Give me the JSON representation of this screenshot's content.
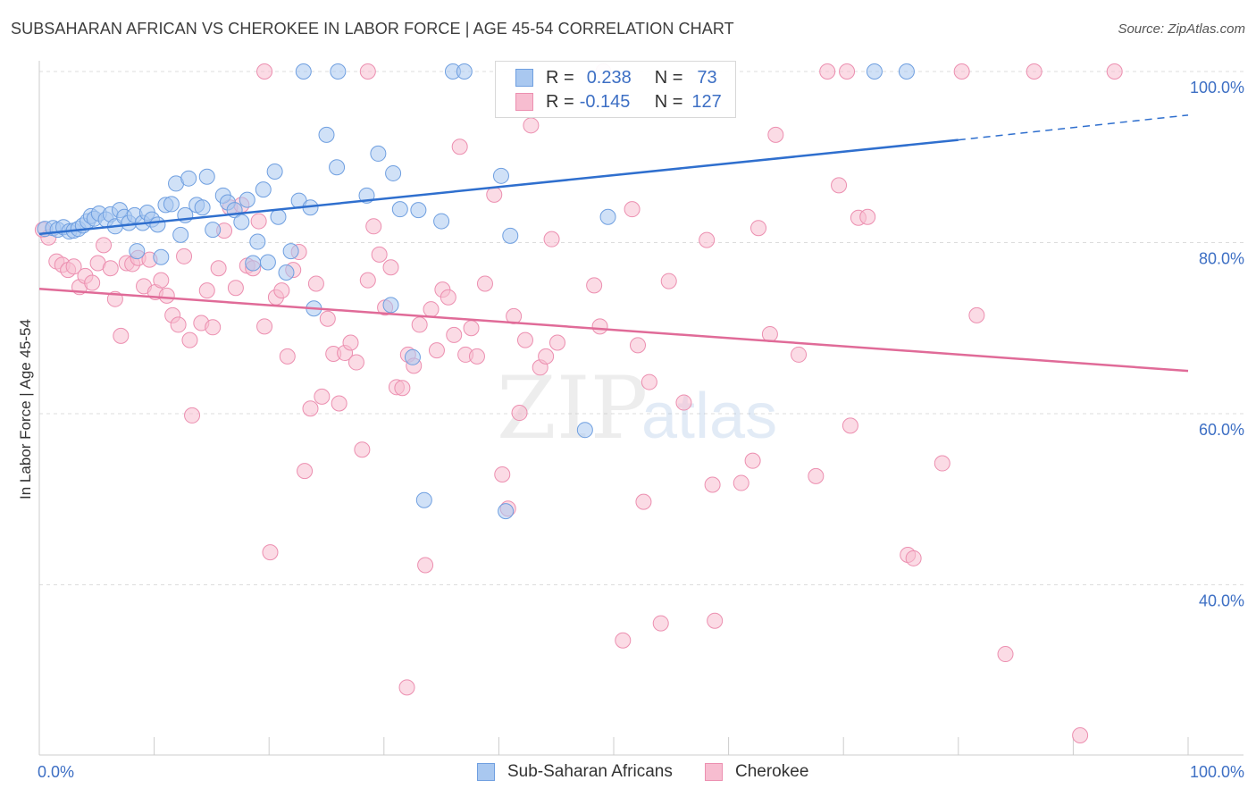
{
  "header": {
    "title": "SUBSAHARAN AFRICAN VS CHEROKEE IN LABOR FORCE | AGE 45-54 CORRELATION CHART",
    "source": "Source: ZipAtlas.com"
  },
  "watermark": {
    "zip": "ZIP",
    "atlas": "atlas"
  },
  "legend": {
    "series": [
      {
        "r_label": "R =",
        "r_value": "0.238",
        "n_label": "N =",
        "n_value": "73"
      },
      {
        "r_label": "R =",
        "r_value": "-0.145",
        "n_label": "N =",
        "n_value": "127"
      }
    ]
  },
  "bottom_legend": [
    "Sub-Saharan Africans",
    "Cherokee"
  ],
  "colors": {
    "blue_fill": "#a9c8f0",
    "blue_stroke": "#6f9fe0",
    "blue_line": "#2f6fce",
    "pink_fill": "#f7bdd0",
    "pink_stroke": "#ec8fb0",
    "pink_line": "#e06b98",
    "axis_text": "#3d6fc4"
  },
  "chart_data": {
    "type": "scatter",
    "title": "SUBSAHARAN AFRICAN VS CHEROKEE IN LABOR FORCE | AGE 45-54 CORRELATION CHART",
    "xlabel": "",
    "ylabel": "In Labor Force | Age 45-54",
    "xlim": [
      0,
      100
    ],
    "ylim": [
      20,
      102
    ],
    "x_tick_labels": [
      "0.0%",
      "100.0%"
    ],
    "y_ticks": [
      100,
      80,
      60,
      40
    ],
    "y_tick_labels": [
      "100.0%",
      "80.0%",
      "60.0%",
      "40.0%"
    ],
    "grid": true,
    "series": [
      {
        "name": "Sub-Saharan Africans",
        "r": 0.238,
        "n": 73,
        "trend": {
          "x0": 0,
          "y0": 81.0,
          "x1": 80,
          "y1": 92.0,
          "dashed_to_x": 100,
          "dashed_to_y": 94.9
        },
        "points": [
          [
            0.5,
            81.6
          ],
          [
            1.2,
            81.7
          ],
          [
            1.6,
            81.5
          ],
          [
            2.1,
            81.8
          ],
          [
            2.6,
            81.3
          ],
          [
            3.0,
            81.4
          ],
          [
            3.4,
            81.6
          ],
          [
            3.8,
            82.0
          ],
          [
            4.2,
            82.5
          ],
          [
            4.5,
            83.1
          ],
          [
            4.8,
            82.8
          ],
          [
            5.2,
            83.4
          ],
          [
            5.8,
            82.7
          ],
          [
            6.2,
            83.3
          ],
          [
            6.6,
            81.9
          ],
          [
            7.0,
            83.8
          ],
          [
            7.4,
            83.0
          ],
          [
            7.8,
            82.3
          ],
          [
            8.3,
            83.2
          ],
          [
            8.5,
            79.0
          ],
          [
            9.0,
            82.3
          ],
          [
            9.4,
            83.5
          ],
          [
            9.8,
            82.7
          ],
          [
            10.3,
            82.1
          ],
          [
            10.6,
            78.3
          ],
          [
            11.0,
            84.4
          ],
          [
            11.5,
            84.5
          ],
          [
            11.9,
            86.9
          ],
          [
            12.3,
            80.9
          ],
          [
            12.7,
            83.2
          ],
          [
            13.0,
            87.5
          ],
          [
            13.7,
            84.4
          ],
          [
            14.2,
            84.1
          ],
          [
            14.6,
            87.7
          ],
          [
            15.1,
            81.5
          ],
          [
            16.0,
            85.5
          ],
          [
            16.4,
            84.7
          ],
          [
            17.0,
            83.8
          ],
          [
            17.6,
            82.4
          ],
          [
            18.1,
            85.0
          ],
          [
            18.6,
            77.6
          ],
          [
            19.0,
            80.1
          ],
          [
            19.5,
            86.2
          ],
          [
            19.9,
            77.7
          ],
          [
            20.5,
            88.3
          ],
          [
            20.8,
            83.0
          ],
          [
            21.5,
            76.5
          ],
          [
            21.9,
            79.0
          ],
          [
            22.6,
            84.9
          ],
          [
            23.6,
            84.1
          ],
          [
            23.9,
            72.3
          ],
          [
            25.0,
            92.6
          ],
          [
            25.9,
            88.8
          ],
          [
            26.0,
            100.0
          ],
          [
            28.5,
            85.5
          ],
          [
            29.5,
            90.4
          ],
          [
            30.6,
            72.7
          ],
          [
            30.8,
            88.1
          ],
          [
            31.4,
            83.9
          ],
          [
            32.5,
            66.6
          ],
          [
            33.0,
            83.8
          ],
          [
            33.5,
            49.9
          ],
          [
            35.0,
            82.5
          ],
          [
            36.0,
            100.0
          ],
          [
            37.0,
            100.0
          ],
          [
            40.2,
            87.8
          ],
          [
            40.6,
            48.6
          ],
          [
            41.0,
            80.8
          ],
          [
            47.5,
            58.1
          ],
          [
            49.5,
            83.0
          ],
          [
            72.7,
            100.0
          ],
          [
            75.5,
            100.0
          ],
          [
            23.0,
            100.0
          ]
        ]
      },
      {
        "name": "Cherokee",
        "r": -0.145,
        "n": 127,
        "trend": {
          "x0": 0,
          "y0": 74.6,
          "x1": 100,
          "y1": 65.0
        },
        "points": [
          [
            0.3,
            81.5
          ],
          [
            0.8,
            80.6
          ],
          [
            1.5,
            77.8
          ],
          [
            2.0,
            77.4
          ],
          [
            2.5,
            76.8
          ],
          [
            3.0,
            77.2
          ],
          [
            3.5,
            74.8
          ],
          [
            4.0,
            76.1
          ],
          [
            4.6,
            75.3
          ],
          [
            5.1,
            77.6
          ],
          [
            5.6,
            79.7
          ],
          [
            6.2,
            77.0
          ],
          [
            6.6,
            73.4
          ],
          [
            7.1,
            69.1
          ],
          [
            7.6,
            77.6
          ],
          [
            8.1,
            77.5
          ],
          [
            8.6,
            78.2
          ],
          [
            9.1,
            74.9
          ],
          [
            9.6,
            78.0
          ],
          [
            10.1,
            74.2
          ],
          [
            10.6,
            75.6
          ],
          [
            11.1,
            73.8
          ],
          [
            11.6,
            71.5
          ],
          [
            12.1,
            70.4
          ],
          [
            12.6,
            78.4
          ],
          [
            13.1,
            68.6
          ],
          [
            13.3,
            59.8
          ],
          [
            14.1,
            70.6
          ],
          [
            14.6,
            74.4
          ],
          [
            15.1,
            70.1
          ],
          [
            15.6,
            77.0
          ],
          [
            16.1,
            81.4
          ],
          [
            16.6,
            84.1
          ],
          [
            17.1,
            74.7
          ],
          [
            17.6,
            84.4
          ],
          [
            18.1,
            77.3
          ],
          [
            18.6,
            77.0
          ],
          [
            19.1,
            82.5
          ],
          [
            19.6,
            70.2
          ],
          [
            20.1,
            43.8
          ],
          [
            20.6,
            73.6
          ],
          [
            21.1,
            74.4
          ],
          [
            21.6,
            66.7
          ],
          [
            22.1,
            76.8
          ],
          [
            22.6,
            78.9
          ],
          [
            23.1,
            53.3
          ],
          [
            23.6,
            60.6
          ],
          [
            24.1,
            75.2
          ],
          [
            24.6,
            62.0
          ],
          [
            25.1,
            71.1
          ],
          [
            25.6,
            67.0
          ],
          [
            26.1,
            61.2
          ],
          [
            26.6,
            67.1
          ],
          [
            27.1,
            68.3
          ],
          [
            27.6,
            66.0
          ],
          [
            28.1,
            55.8
          ],
          [
            28.6,
            75.6
          ],
          [
            29.1,
            81.9
          ],
          [
            29.6,
            78.6
          ],
          [
            30.1,
            72.4
          ],
          [
            30.6,
            77.1
          ],
          [
            31.1,
            63.1
          ],
          [
            31.6,
            63.0
          ],
          [
            32.1,
            66.9
          ],
          [
            32.6,
            65.6
          ],
          [
            32.0,
            28.0
          ],
          [
            33.1,
            70.4
          ],
          [
            33.6,
            42.3
          ],
          [
            34.1,
            72.2
          ],
          [
            34.6,
            67.4
          ],
          [
            35.1,
            74.5
          ],
          [
            35.6,
            73.6
          ],
          [
            36.1,
            69.2
          ],
          [
            36.6,
            91.2
          ],
          [
            37.1,
            66.9
          ],
          [
            37.6,
            70.0
          ],
          [
            38.1,
            66.7
          ],
          [
            38.8,
            75.2
          ],
          [
            39.6,
            85.6
          ],
          [
            40.3,
            52.9
          ],
          [
            40.8,
            48.9
          ],
          [
            41.3,
            71.4
          ],
          [
            41.8,
            60.1
          ],
          [
            42.3,
            68.6
          ],
          [
            42.8,
            93.7
          ],
          [
            43.6,
            65.4
          ],
          [
            44.1,
            66.7
          ],
          [
            44.6,
            80.4
          ],
          [
            45.1,
            68.3
          ],
          [
            48.3,
            75.0
          ],
          [
            48.8,
            70.2
          ],
          [
            49.1,
            100.0
          ],
          [
            50.8,
            33.5
          ],
          [
            51.6,
            83.9
          ],
          [
            52.1,
            68.0
          ],
          [
            52.6,
            49.7
          ],
          [
            53.1,
            63.7
          ],
          [
            54.1,
            35.5
          ],
          [
            54.8,
            75.5
          ],
          [
            56.1,
            61.3
          ],
          [
            58.1,
            80.3
          ],
          [
            58.6,
            51.7
          ],
          [
            58.8,
            35.8
          ],
          [
            61.1,
            51.9
          ],
          [
            62.1,
            54.5
          ],
          [
            62.6,
            81.7
          ],
          [
            63.6,
            69.3
          ],
          [
            64.1,
            92.6
          ],
          [
            66.1,
            66.9
          ],
          [
            67.6,
            52.7
          ],
          [
            68.6,
            100.0
          ],
          [
            69.6,
            86.7
          ],
          [
            70.6,
            58.6
          ],
          [
            71.3,
            82.9
          ],
          [
            72.1,
            83.0
          ],
          [
            75.6,
            43.5
          ],
          [
            76.1,
            43.1
          ],
          [
            78.6,
            54.2
          ],
          [
            80.3,
            100.0
          ],
          [
            81.6,
            71.5
          ],
          [
            84.1,
            31.9
          ],
          [
            90.6,
            22.4
          ],
          [
            93.6,
            100.0
          ],
          [
            19.6,
            100.0
          ],
          [
            28.6,
            100.0
          ],
          [
            86.6,
            100.0
          ],
          [
            70.3,
            100.0
          ]
        ]
      }
    ]
  }
}
